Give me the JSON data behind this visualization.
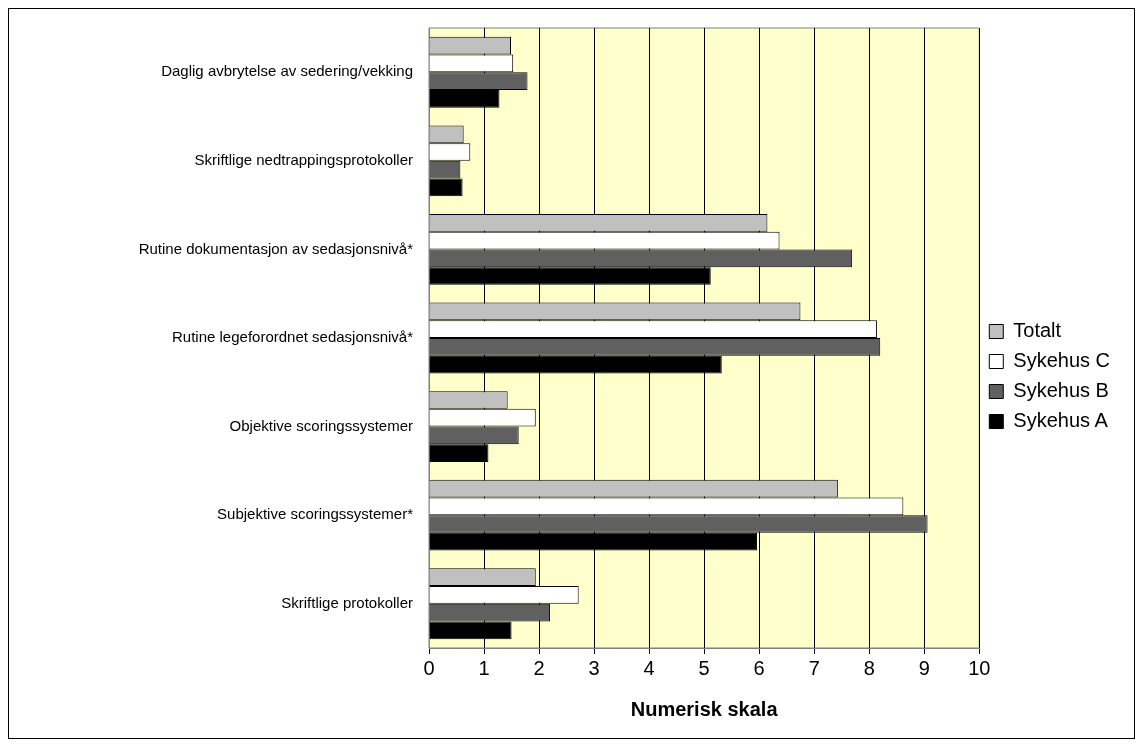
{
  "chart_data": {
    "type": "bar",
    "orientation": "horizontal",
    "xlabel": "Numerisk skala",
    "categories": [
      "Daglig avbrytelse av sedering/vekking",
      "Skriftlige nedtrappingsprotokoller",
      "Rutine dokumentasjon av sedasjonsnivå*",
      "Rutine legeforordnet sedasjonsnivå*",
      "Objektive scoringssystemer",
      "Subjektive scoringssystemer*",
      "Skriftlige protokoller"
    ],
    "series": [
      {
        "name": "Totalt",
        "color": "#c0c0c0",
        "values": [
          1.49,
          0.63,
          6.15,
          6.75,
          1.43,
          7.43,
          1.94
        ]
      },
      {
        "name": "Sykehus C",
        "color": "#ffffff",
        "values": [
          1.53,
          0.75,
          6.37,
          8.14,
          1.94,
          8.62,
          2.72
        ]
      },
      {
        "name": "Sykehus B",
        "color": "#606060",
        "values": [
          1.79,
          0.57,
          7.69,
          8.2,
          1.63,
          9.06,
          2.2
        ]
      },
      {
        "name": "Sykehus A",
        "color": "#000000",
        "values": [
          1.28,
          0.61,
          5.12,
          5.32,
          1.08,
          5.96,
          1.5
        ]
      }
    ],
    "xlim": [
      0,
      10
    ],
    "xticks": [
      0,
      1,
      2,
      3,
      4,
      5,
      6,
      7,
      8,
      9,
      10
    ],
    "grid": "x",
    "legend": "right"
  }
}
